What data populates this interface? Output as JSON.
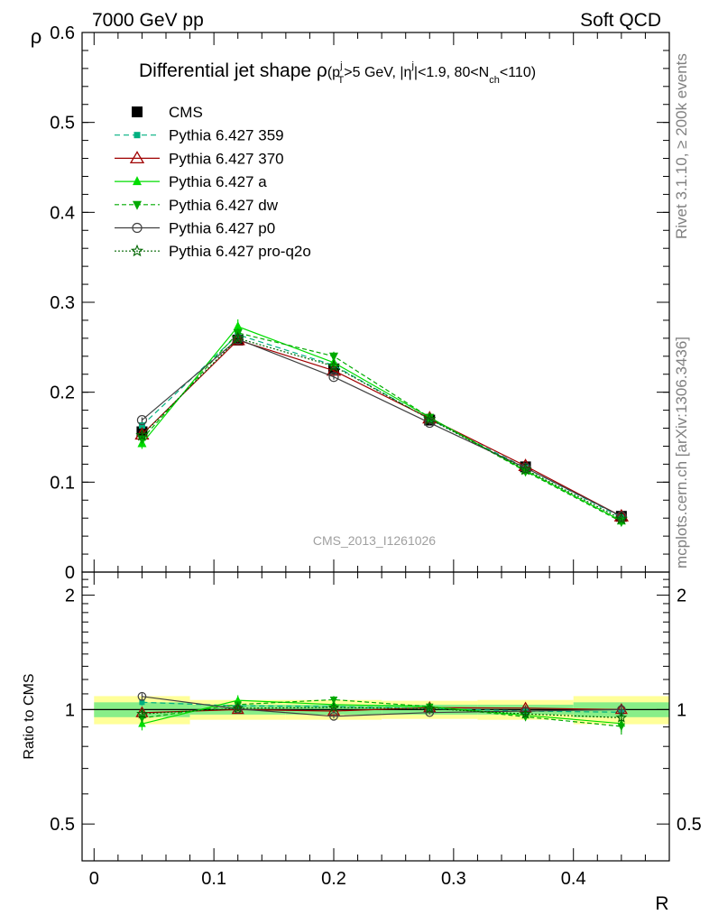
{
  "header": {
    "left": "7000 GeV pp",
    "right": "Soft QCD"
  },
  "side_labels": {
    "rivet": "Rivet 3.1.10, ≥ 200k events",
    "mcplots": "mcplots.cern.ch [arXiv:1306.3436]"
  },
  "watermark": "CMS_2013_I1261026",
  "colors": {
    "cms": "#000000",
    "p359": "#00b080",
    "p370": "#a00000",
    "pa": "#00dd00",
    "pdw": "#00aa00",
    "pp0": "#404040",
    "pq2o": "#006600",
    "band_outer": "#ffff99",
    "band_inner": "#88ee88"
  },
  "chart_data": [
    {
      "type": "line",
      "title_main": "Differential jet shape ρ",
      "title_sup_j1": "j",
      "title_sub_T": "T",
      "title_part1": "(p",
      "title_part2": ">5 GeV, |η",
      "title_sup_j2": "j",
      "title_part3": "|<1.9, 80<N",
      "title_sub_ch": "ch",
      "title_part4": "<110)",
      "ylabel": "ρ",
      "xlabel": "R",
      "ylim": [
        0,
        0.6
      ],
      "xlim": [
        -0.01,
        0.48
      ],
      "y_ticks": [
        "0",
        "0.1",
        "0.2",
        "0.3",
        "0.4",
        "0.5",
        "0.6"
      ],
      "y_tick_values": [
        0,
        0.1,
        0.2,
        0.3,
        0.4,
        0.5,
        0.6
      ],
      "x": [
        0.04,
        0.12,
        0.2,
        0.28,
        0.36,
        0.44
      ],
      "legend_position": "top-left",
      "series": [
        {
          "key": "cms",
          "name": "CMS",
          "values": [
            0.156,
            0.258,
            0.226,
            0.169,
            0.117,
            0.062
          ],
          "errors": [
            0.006,
            0.005,
            0.004,
            0.003,
            0.002,
            0.002
          ],
          "marker": "square",
          "dash": "none"
        },
        {
          "key": "p359",
          "name": "Pythia 6.427 359",
          "values": [
            0.163,
            0.264,
            0.23,
            0.17,
            0.116,
            0.061
          ],
          "errors": [
            0.003,
            0.003,
            0.003,
            0.002,
            0.002,
            0.002
          ],
          "marker": "smallsquare",
          "dash": "6,4"
        },
        {
          "key": "p370",
          "name": "Pythia 6.427 370",
          "values": [
            0.153,
            0.258,
            0.224,
            0.171,
            0.118,
            0.062
          ],
          "errors": [
            0.003,
            0.003,
            0.003,
            0.002,
            0.002,
            0.002
          ],
          "marker": "triangle-open",
          "dash": "none"
        },
        {
          "key": "pa",
          "name": "Pythia 6.427 a",
          "values": [
            0.143,
            0.273,
            0.233,
            0.172,
            0.113,
            0.057
          ],
          "errors": [
            0.006,
            0.008,
            0.006,
            0.004,
            0.003,
            0.003
          ],
          "marker": "triangle",
          "dash": "none"
        },
        {
          "key": "pdw",
          "name": "Pythia 6.427 dw",
          "values": [
            0.148,
            0.266,
            0.24,
            0.172,
            0.112,
            0.056
          ],
          "errors": [
            0.004,
            0.005,
            0.005,
            0.003,
            0.003,
            0.003
          ],
          "marker": "triangle-down",
          "dash": "5,3"
        },
        {
          "key": "pp0",
          "name": "Pythia 6.427 p0",
          "values": [
            0.169,
            0.259,
            0.217,
            0.166,
            0.116,
            0.062
          ],
          "errors": [
            0.003,
            0.003,
            0.003,
            0.002,
            0.002,
            0.002
          ],
          "marker": "circle-open",
          "dash": "none"
        },
        {
          "key": "pq2o",
          "name": "Pythia 6.427 pro-q2o",
          "values": [
            0.152,
            0.26,
            0.229,
            0.17,
            0.114,
            0.059
          ],
          "errors": [
            0.003,
            0.003,
            0.003,
            0.002,
            0.002,
            0.002
          ],
          "marker": "star",
          "dash": "2,2"
        }
      ]
    },
    {
      "type": "line",
      "ylabel": "Ratio to CMS",
      "xlabel": "R",
      "ylog": true,
      "ylim": [
        0.4,
        2.3
      ],
      "y_ticks": [
        "0.5",
        "1",
        "2"
      ],
      "y_tick_values": [
        0.5,
        1,
        2
      ],
      "x_ticks": [
        "0",
        "0.1",
        "0.2",
        "0.3",
        "0.4"
      ],
      "x_tick_values": [
        0,
        0.1,
        0.2,
        0.3,
        0.4
      ],
      "x": [
        0.04,
        0.12,
        0.2,
        0.28,
        0.36,
        0.44
      ],
      "bins": [
        [
          0,
          0.08
        ],
        [
          0.08,
          0.16
        ],
        [
          0.16,
          0.24
        ],
        [
          0.24,
          0.32
        ],
        [
          0.32,
          0.4
        ],
        [
          0.4,
          0.48
        ]
      ],
      "band_outer": [
        0.085,
        0.06,
        0.06,
        0.055,
        0.06,
        0.085
      ],
      "band_inner": [
        0.045,
        0.03,
        0.03,
        0.03,
        0.03,
        0.045
      ],
      "series": [
        {
          "key": "p359",
          "values": [
            1.045,
            1.023,
            1.018,
            1.006,
            0.991,
            0.984
          ]
        },
        {
          "key": "p370",
          "values": [
            0.981,
            1.0,
            0.991,
            1.012,
            1.009,
            1.0
          ]
        },
        {
          "key": "pa",
          "values": [
            0.917,
            1.058,
            1.031,
            1.018,
            0.966,
            0.919
          ]
        },
        {
          "key": "pdw",
          "values": [
            0.949,
            1.031,
            1.062,
            1.018,
            0.957,
            0.903
          ]
        },
        {
          "key": "pp0",
          "values": [
            1.083,
            1.004,
            0.96,
            0.982,
            0.991,
            1.0
          ]
        },
        {
          "key": "pq2o",
          "values": [
            0.974,
            1.008,
            1.013,
            1.006,
            0.974,
            0.952
          ]
        }
      ]
    }
  ]
}
